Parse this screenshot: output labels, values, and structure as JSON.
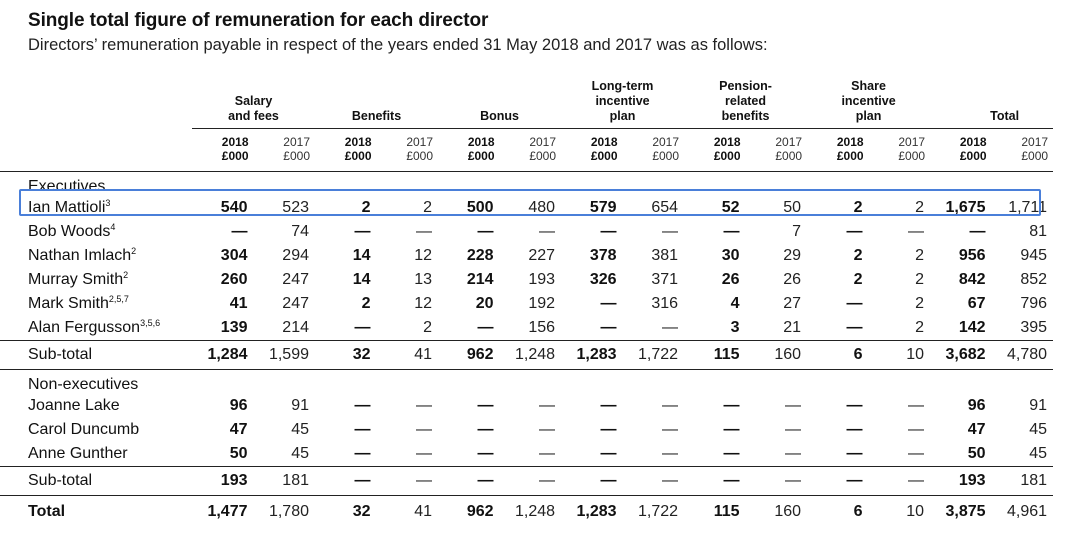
{
  "title": "Single total figure of remuneration for each director",
  "subtitle": "Directors’ remuneration payable in respect of the years ended 31 May 2018 and 2017 was as follows:",
  "column_groups": [
    {
      "label_lines": [
        "Salary",
        "and fees"
      ]
    },
    {
      "label_lines": [
        "Benefits"
      ]
    },
    {
      "label_lines": [
        "Bonus"
      ]
    },
    {
      "label_lines": [
        "Long-term",
        "incentive",
        "plan"
      ]
    },
    {
      "label_lines": [
        "Pension-",
        "related",
        "benefits"
      ]
    },
    {
      "label_lines": [
        "Share",
        "incentive",
        "plan"
      ]
    },
    {
      "label_lines": [
        "Total"
      ]
    }
  ],
  "year_current": [
    "2018",
    "£000"
  ],
  "year_prior": [
    "2017",
    "£000"
  ],
  "sections": [
    {
      "heading": "Executives",
      "rows": [
        {
          "name": "Ian Mattioli",
          "note": "3",
          "values": [
            "540",
            "523",
            "2",
            "2",
            "500",
            "480",
            "579",
            "654",
            "52",
            "50",
            "2",
            "2",
            "1,675",
            "1,711"
          ],
          "highlighted": true
        },
        {
          "name": "Bob Woods",
          "note": "4",
          "values": [
            "—",
            "74",
            "—",
            "—",
            "—",
            "—",
            "—",
            "—",
            "—",
            "7",
            "—",
            "—",
            "—",
            "81"
          ]
        },
        {
          "name": "Nathan Imlach",
          "note": "2",
          "values": [
            "304",
            "294",
            "14",
            "12",
            "228",
            "227",
            "378",
            "381",
            "30",
            "29",
            "2",
            "2",
            "956",
            "945"
          ]
        },
        {
          "name": "Murray Smith",
          "note": "2",
          "values": [
            "260",
            "247",
            "14",
            "13",
            "214",
            "193",
            "326",
            "371",
            "26",
            "26",
            "2",
            "2",
            "842",
            "852"
          ]
        },
        {
          "name": "Mark Smith",
          "note": "2,5,7",
          "values": [
            "41",
            "247",
            "2",
            "12",
            "20",
            "192",
            "—",
            "316",
            "4",
            "27",
            "—",
            "2",
            "67",
            "796"
          ]
        },
        {
          "name": "Alan Fergusson",
          "note": "3,5,6",
          "values": [
            "139",
            "214",
            "—",
            "2",
            "—",
            "156",
            "—",
            "—",
            "3",
            "21",
            "—",
            "2",
            "142",
            "395"
          ]
        }
      ],
      "subtotal": {
        "label": "Sub-total",
        "values": [
          "1,284",
          "1,599",
          "32",
          "41",
          "962",
          "1,248",
          "1,283",
          "1,722",
          "115",
          "160",
          "6",
          "10",
          "3,682",
          "4,780"
        ]
      }
    },
    {
      "heading": "Non-executives",
      "rows": [
        {
          "name": "Joanne Lake",
          "note": "",
          "values": [
            "96",
            "91",
            "—",
            "—",
            "—",
            "—",
            "—",
            "—",
            "—",
            "—",
            "—",
            "—",
            "96",
            "91"
          ]
        },
        {
          "name": "Carol Duncumb",
          "note": "",
          "values": [
            "47",
            "45",
            "—",
            "—",
            "—",
            "—",
            "—",
            "—",
            "—",
            "—",
            "—",
            "—",
            "47",
            "45"
          ]
        },
        {
          "name": "Anne Gunther",
          "note": "",
          "values": [
            "50",
            "45",
            "—",
            "—",
            "—",
            "—",
            "—",
            "—",
            "—",
            "—",
            "—",
            "—",
            "50",
            "45"
          ]
        }
      ],
      "subtotal": {
        "label": "Sub-total",
        "values": [
          "193",
          "181",
          "—",
          "—",
          "—",
          "—",
          "—",
          "—",
          "—",
          "—",
          "—",
          "—",
          "193",
          "181"
        ]
      }
    }
  ],
  "total": {
    "label": "Total",
    "values": [
      "1,477",
      "1,780",
      "32",
      "41",
      "962",
      "1,248",
      "1,283",
      "1,722",
      "115",
      "160",
      "6",
      "10",
      "3,875",
      "4,961"
    ]
  },
  "colors": {
    "highlight": "#4a7fd9",
    "rule": "#222222"
  }
}
